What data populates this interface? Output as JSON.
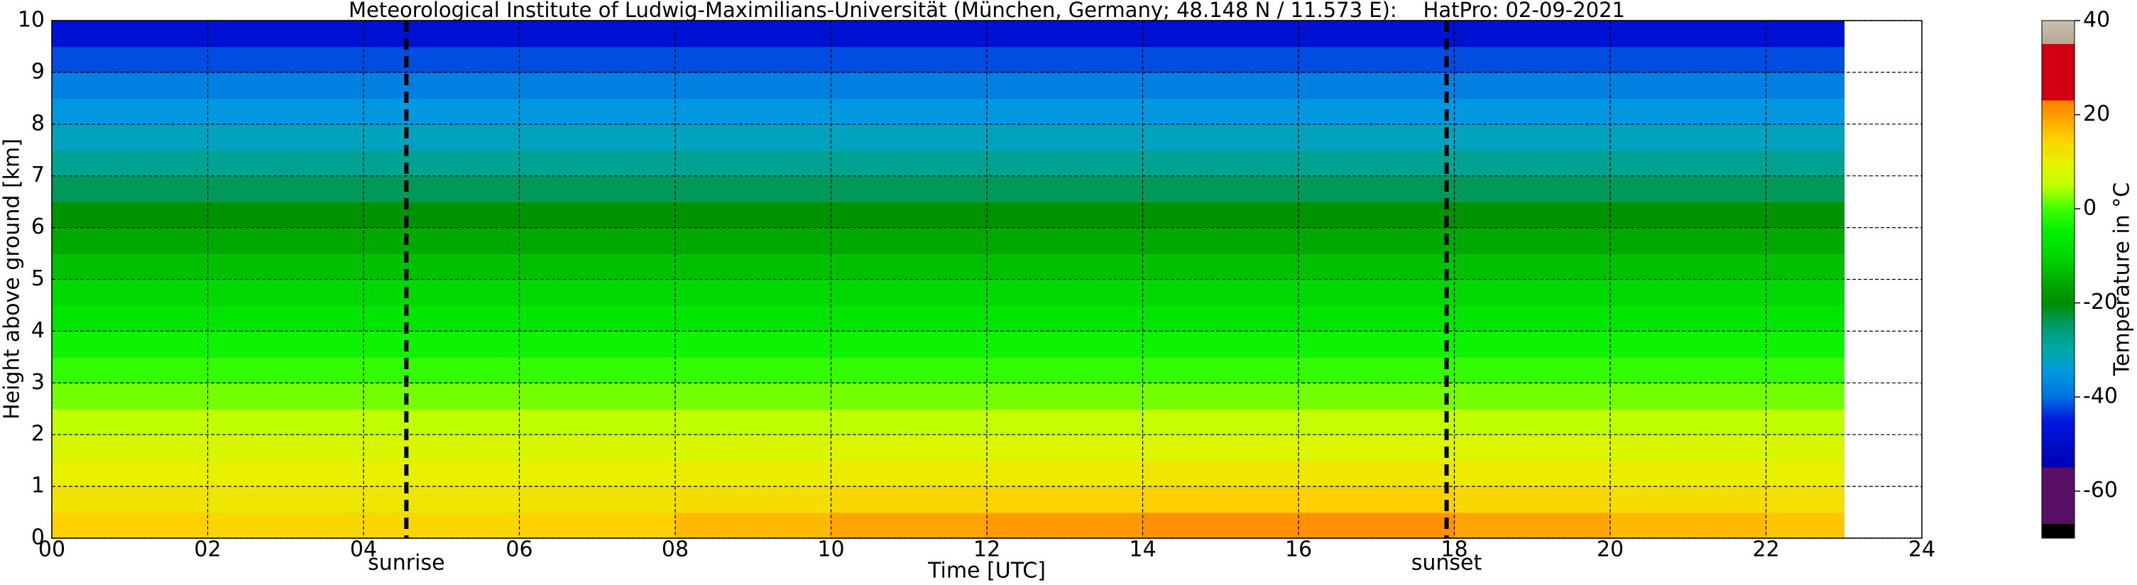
{
  "chart_data": {
    "type": "heatmap",
    "title": "Meteorological Institute of Ludwig-Maximilians-Universität (München, Germany; 48.148 N / 11.573 E):    HatPro: 02-09-2021",
    "xlabel": "Time [UTC]",
    "ylabel": "Height above ground [km]",
    "xlim": [
      0,
      24
    ],
    "xticks": [
      {
        "value": 0,
        "label": "00"
      },
      {
        "value": 2,
        "label": "02"
      },
      {
        "value": 4,
        "label": "04"
      },
      {
        "value": 6,
        "label": "06"
      },
      {
        "value": 8,
        "label": "08"
      },
      10,
      12,
      14,
      16,
      18,
      20,
      22,
      24
    ],
    "ylim": [
      0,
      10
    ],
    "yticks": [
      0,
      1,
      2,
      3,
      4,
      5,
      6,
      7,
      8,
      9,
      10
    ],
    "grid": true,
    "x": [
      0,
      2,
      4,
      6,
      8,
      10,
      12,
      14,
      16,
      18,
      20,
      22,
      23
    ],
    "y": [
      0,
      0.5,
      1,
      1.5,
      2,
      2.5,
      3,
      3.5,
      4,
      4.5,
      5,
      5.5,
      6,
      6.5,
      7,
      7.5,
      8,
      8.5,
      9,
      9.5,
      10
    ],
    "values": [
      [
        15,
        14,
        14,
        15,
        17,
        19,
        20,
        21,
        21,
        19,
        17,
        16
      ],
      [
        12,
        11.5,
        11.5,
        12,
        13,
        14,
        14.5,
        15,
        15,
        14,
        13,
        12.5
      ],
      [
        10,
        10,
        10,
        10,
        10.5,
        11,
        11,
        11.5,
        11.5,
        11,
        10.5,
        10
      ],
      [
        8,
        8,
        8,
        8,
        8,
        8.5,
        8.5,
        8.5,
        8.5,
        8.5,
        8,
        8
      ],
      [
        5,
        5,
        5,
        5,
        5,
        5,
        5.5,
        5.5,
        5.5,
        5,
        5,
        5
      ],
      [
        2,
        2,
        2,
        2,
        2,
        2,
        2,
        2,
        2,
        2,
        2,
        2
      ],
      [
        -1,
        -1,
        -1,
        -1,
        -1,
        -1,
        -1,
        -1,
        -1,
        -1,
        -1,
        -1
      ],
      [
        -4,
        -4,
        -4,
        -4,
        -4,
        -4,
        -4,
        -4,
        -4,
        -4,
        -4,
        -4
      ],
      [
        -7,
        -7,
        -7,
        -7,
        -7,
        -7,
        -7,
        -7,
        -7,
        -7,
        -7,
        -7
      ],
      [
        -10,
        -10,
        -10,
        -10,
        -10,
        -10,
        -10,
        -10,
        -10,
        -10,
        -10,
        -10
      ],
      [
        -13,
        -13,
        -13,
        -13,
        -13,
        -13,
        -13,
        -13,
        -13,
        -13,
        -13,
        -13
      ],
      [
        -16,
        -16,
        -16,
        -16,
        -16,
        -16,
        -16,
        -16,
        -16,
        -16,
        -16,
        -16
      ],
      [
        -19,
        -19,
        -19,
        -19,
        -19,
        -19,
        -19,
        -19,
        -19,
        -19,
        -19,
        -19
      ],
      [
        -24,
        -24,
        -24,
        -24,
        -24,
        -24,
        -24,
        -24,
        -24,
        -24,
        -24,
        -24
      ],
      [
        -28,
        -28,
        -28,
        -28,
        -28,
        -28,
        -28,
        -28,
        -28,
        -28,
        -28,
        -28
      ],
      [
        -32,
        -32,
        -32,
        -32,
        -32,
        -32,
        -32,
        -32,
        -32,
        -32,
        -32,
        -32
      ],
      [
        -35,
        -35,
        -35,
        -35,
        -35,
        -35,
        -35,
        -35,
        -35,
        -35,
        -35,
        -35
      ],
      [
        -38,
        -38,
        -38,
        -38,
        -38,
        -38,
        -38,
        -38,
        -38,
        -38,
        -38,
        -38
      ],
      [
        -42,
        -42,
        -42,
        -42,
        -42,
        -42,
        -42,
        -42,
        -42,
        -42,
        -42,
        -42
      ],
      [
        -48,
        -48,
        -48,
        -48,
        -48,
        -48,
        -48,
        -48,
        -48,
        -48,
        -48,
        -48
      ]
    ],
    "annotations": [
      {
        "text": "sunrise",
        "x": 4.55
      },
      {
        "text": "sunset",
        "x": 17.9
      }
    ],
    "colorbar": {
      "label": "Temperature in °C",
      "lim": [
        -70,
        40
      ],
      "ticks": [
        -60,
        -40,
        -20,
        0,
        20,
        40
      ],
      "stops": [
        [
          -70,
          "#000000"
        ],
        [
          -67,
          "#000000"
        ],
        [
          -67,
          "#5a0f66"
        ],
        [
          -55,
          "#5a0f66"
        ],
        [
          -55,
          "#0000b4"
        ],
        [
          -45,
          "#0018e0"
        ],
        [
          -40,
          "#0070e0"
        ],
        [
          -35,
          "#0098e0"
        ],
        [
          -30,
          "#00a8a8"
        ],
        [
          -25,
          "#009c70"
        ],
        [
          -20,
          "#008c00"
        ],
        [
          -15,
          "#00b000"
        ],
        [
          -10,
          "#00d800"
        ],
        [
          -5,
          "#00f000"
        ],
        [
          0,
          "#40ff00"
        ],
        [
          5,
          "#c0ff00"
        ],
        [
          10,
          "#e8f000"
        ],
        [
          15,
          "#ffd000"
        ],
        [
          20,
          "#ff9900"
        ],
        [
          23,
          "#ff8000"
        ],
        [
          23,
          "#d00010"
        ],
        [
          35,
          "#d00010"
        ],
        [
          35,
          "#b8a890"
        ],
        [
          40,
          "#c8c0b0"
        ]
      ]
    }
  }
}
